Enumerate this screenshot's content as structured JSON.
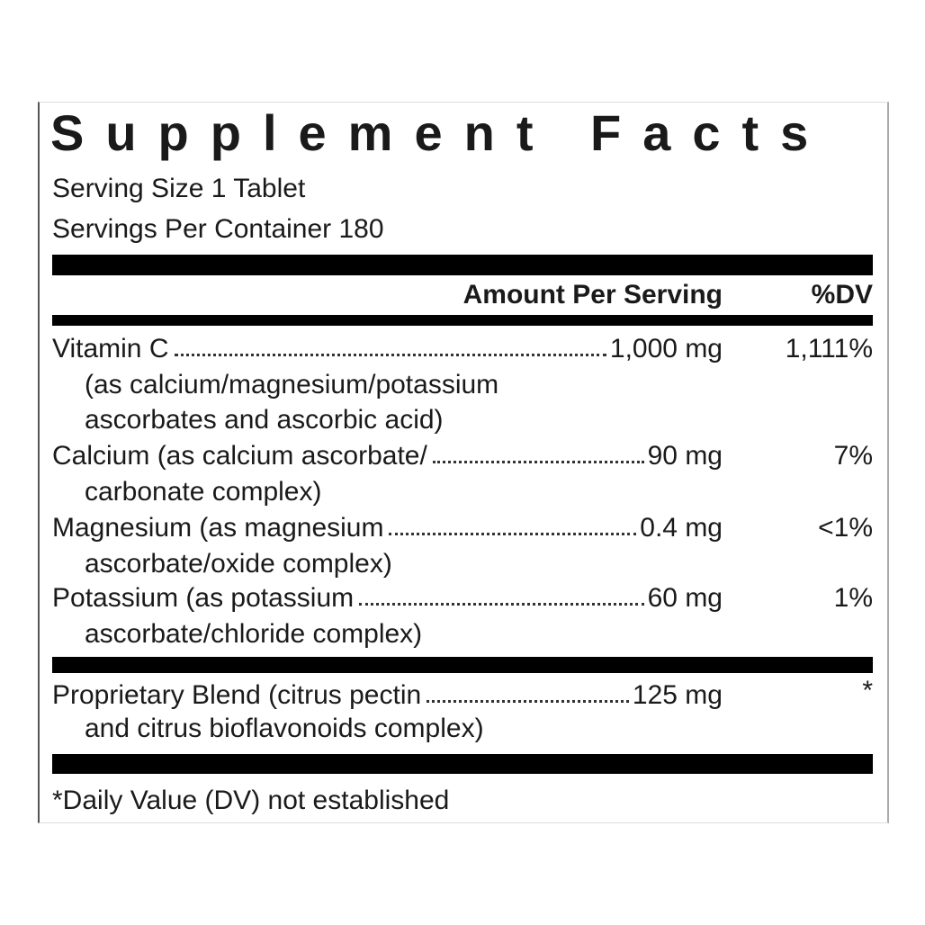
{
  "title": "Supplement Facts",
  "serving_size": "Serving Size 1 Tablet",
  "servings_per_container": "Servings Per Container 180",
  "header": {
    "amount": "Amount Per Serving",
    "dv": "%DV"
  },
  "nutrients": [
    {
      "name": "Vitamin C",
      "detail": [
        "(as calcium/magnesium/potassium",
        "ascorbates and ascorbic acid)"
      ],
      "amount": "1,000 mg",
      "dv": "1,111%"
    },
    {
      "name": "Calcium (as calcium ascorbate/",
      "detail": [
        "carbonate complex)"
      ],
      "amount": "90 mg",
      "dv": "7%"
    },
    {
      "name": "Magnesium (as magnesium",
      "detail": [
        "ascorbate/oxide complex)"
      ],
      "amount": "0.4 mg",
      "dv": "<1%"
    },
    {
      "name": "Potassium (as potassium",
      "detail": [
        "ascorbate/chloride complex)"
      ],
      "amount": "60 mg",
      "dv": "1%"
    }
  ],
  "blend": {
    "name": "Proprietary Blend (citrus pectin",
    "detail": [
      "and citrus bioflavonoids complex)"
    ],
    "amount": "125 mg",
    "dv": "*"
  },
  "footnote": "*Daily Value (DV) not established"
}
